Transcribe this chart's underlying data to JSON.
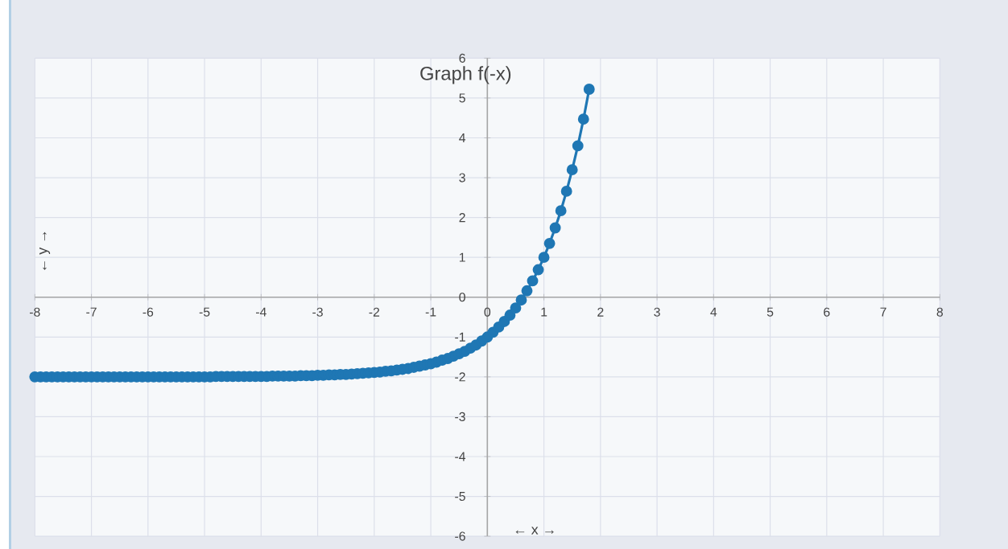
{
  "chart_data": {
    "type": "line",
    "title": "Graph f(-x)",
    "xlabel": "← x →",
    "ylabel": "← y →",
    "xlim": [
      -8,
      8
    ],
    "ylim": [
      -6,
      6
    ],
    "xticks": [
      -8,
      -7,
      -6,
      -5,
      -4,
      -3,
      -2,
      -1,
      0,
      1,
      2,
      3,
      4,
      5,
      6,
      7,
      8
    ],
    "yticks": [
      -6,
      -5,
      -4,
      -3,
      -2,
      -1,
      0,
      1,
      2,
      3,
      4,
      5,
      6
    ],
    "grid": true,
    "marker": "circle",
    "line_style": "solid",
    "series": [
      {
        "color": "#1f77b4",
        "x": [
          -8.0,
          -7.9,
          -7.8,
          -7.7,
          -7.6,
          -7.5,
          -7.4,
          -7.3,
          -7.2,
          -7.1,
          -7.0,
          -6.9,
          -6.8,
          -6.7,
          -6.6,
          -6.5,
          -6.4,
          -6.3,
          -6.2,
          -6.1,
          -6.0,
          -5.9,
          -5.8,
          -5.7,
          -5.6,
          -5.5,
          -5.4,
          -5.3,
          -5.2,
          -5.1,
          -5.0,
          -4.9,
          -4.8,
          -4.7,
          -4.6,
          -4.5,
          -4.4,
          -4.3,
          -4.2,
          -4.1,
          -4.0,
          -3.9,
          -3.8,
          -3.7,
          -3.6,
          -3.5,
          -3.4,
          -3.3,
          -3.2,
          -3.1,
          -3.0,
          -2.9,
          -2.8,
          -2.7,
          -2.6,
          -2.5,
          -2.4,
          -2.3,
          -2.2,
          -2.1,
          -2.0,
          -1.9,
          -1.8,
          -1.7,
          -1.6,
          -1.5,
          -1.4,
          -1.3,
          -1.2,
          -1.1,
          -1.0,
          -0.9,
          -0.8,
          -0.7,
          -0.6,
          -0.5,
          -0.4,
          -0.3,
          -0.2,
          -0.1,
          0.0,
          0.1,
          0.2,
          0.3,
          0.4,
          0.5,
          0.6,
          0.7,
          0.8,
          0.9,
          1.0,
          1.1,
          1.2,
          1.3,
          1.4,
          1.5,
          1.6,
          1.7,
          1.8
        ],
        "values": [
          -2,
          -2,
          -2,
          -2,
          -2,
          -2,
          -2,
          -2,
          -2,
          -2,
          -2,
          -2,
          -2,
          -2,
          -2,
          -2,
          -2,
          -2,
          -2,
          -2,
          -2,
          -2,
          -2,
          -2,
          -2,
          -2,
          -2,
          -2,
          -2,
          -2,
          -2,
          -2,
          -1.99,
          -1.99,
          -1.99,
          -1.99,
          -1.99,
          -1.99,
          -1.99,
          -1.99,
          -1.99,
          -1.99,
          -1.98,
          -1.98,
          -1.98,
          -1.98,
          -1.98,
          -1.97,
          -1.97,
          -1.97,
          -1.96,
          -1.96,
          -1.95,
          -1.95,
          -1.94,
          -1.94,
          -1.93,
          -1.92,
          -1.91,
          -1.9,
          -1.89,
          -1.88,
          -1.86,
          -1.85,
          -1.83,
          -1.81,
          -1.79,
          -1.76,
          -1.73,
          -1.7,
          -1.67,
          -1.63,
          -1.58,
          -1.54,
          -1.48,
          -1.42,
          -1.36,
          -1.28,
          -1.2,
          -1.1,
          -1.0,
          -0.88,
          -0.75,
          -0.61,
          -0.45,
          -0.27,
          -0.07,
          0.16,
          0.41,
          0.69,
          1.0,
          1.35,
          1.74,
          2.17,
          2.66,
          3.2,
          3.8,
          4.47,
          5.22
        ]
      }
    ]
  }
}
